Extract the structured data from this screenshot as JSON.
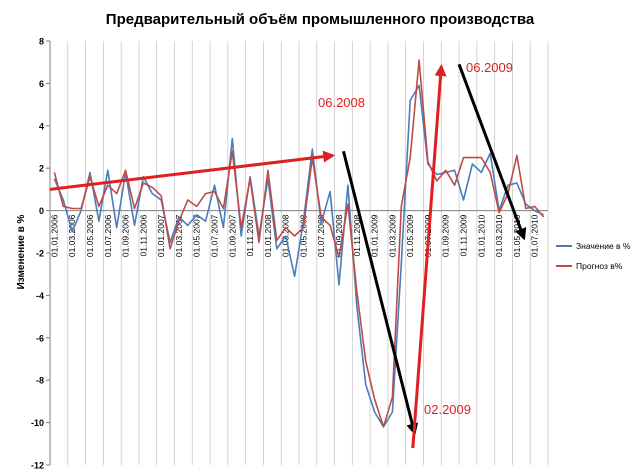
{
  "chart_data": {
    "type": "line",
    "title": "Предварительный объём промышленного производства",
    "xlabel": "",
    "ylabel": "Изменение в %",
    "ylim": [
      -12,
      8
    ],
    "yticks": [
      -12,
      -10,
      -8,
      -6,
      -4,
      -2,
      0,
      2,
      4,
      6,
      8
    ],
    "grid": "vertical",
    "legend_position": "right",
    "x_tick_labels": [
      "01.01.2006",
      "01.03.2006",
      "01.05.2006",
      "01.07.2006",
      "01.09.2006",
      "01.11.2006",
      "01.01.2007",
      "01.03.2007",
      "01.05.2007",
      "01.07.2007",
      "01.09.2007",
      "01.11.2007",
      "01.01.2008",
      "01.03.2008",
      "01.05.2008",
      "01.07.2008",
      "01.09.2008",
      "01.11.2008",
      "01.01.2009",
      "01.03.2009",
      "01.05.2009",
      "01.07.2009",
      "01.09.2009",
      "01.11.2009",
      "01.01.2010",
      "01.03.2010",
      "01.05.2010",
      "01.07.2010"
    ],
    "series": [
      {
        "name": "Значение в %",
        "color": "#4a7ebb",
        "values": [
          1.5,
          0.5,
          -1,
          0,
          1.8,
          -0.5,
          1.9,
          -0.8,
          1.8,
          -0.7,
          1.6,
          0.8,
          0.5,
          -1.5,
          -0.3,
          -0.7,
          -0.2,
          -0.5,
          1.2,
          -0.8,
          3.4,
          -1.2,
          1.6,
          -1.2,
          1.5,
          -1.8,
          -1.2,
          -3.1,
          -0.5,
          2.9,
          -0.6,
          0.9,
          -3.5,
          1.2,
          -4.5,
          -8.2,
          -9.5,
          -10.2,
          -9.5,
          -2.5,
          5.2,
          5.9,
          2.2,
          1.7,
          1.8,
          1.9,
          0.5,
          2.2,
          1.8,
          2.7,
          0,
          1.2,
          1.3,
          0.3,
          0,
          -0.2
        ]
      },
      {
        "name": "Прогноз в%",
        "color": "#be4b48",
        "values": [
          1.8,
          0.2,
          0.1,
          0.1,
          1.6,
          0.2,
          1.2,
          0.8,
          1.9,
          0.1,
          1.3,
          1.1,
          0.7,
          -1.8,
          -0.5,
          0.5,
          0.2,
          0.8,
          0.9,
          0.1,
          2.8,
          -0.8,
          1.5,
          -1.5,
          1.9,
          -1.4,
          -0.8,
          -1.2,
          -0.8,
          2.5,
          -0.3,
          -0.7,
          -2.2,
          0.3,
          -3.8,
          -7.1,
          -8.9,
          -10.2,
          -8.8,
          0.2,
          2.5,
          7.1,
          2.3,
          1.4,
          1.9,
          1.2,
          2.5,
          2.5,
          2.5,
          1.8,
          -0.1,
          0.8,
          2.6,
          0.1,
          0.2,
          -0.3
        ]
      }
    ],
    "annotations": [
      {
        "text": "06.2008",
        "color": "#e02020"
      },
      {
        "text": "02.2009",
        "color": "#e02020"
      },
      {
        "text": "06.2009",
        "color": "#e02020"
      }
    ],
    "trend_arrows": [
      {
        "color": "#e02020",
        "from": [
          -0.5,
          1.0
        ],
        "to": [
          31.3,
          2.6
        ]
      },
      {
        "color": "#000000",
        "from": [
          32.5,
          2.8
        ],
        "to": [
          40.5,
          -10.5
        ]
      },
      {
        "color": "#e02020",
        "from": [
          40.3,
          -11.2
        ],
        "to": [
          43.5,
          6.8
        ]
      },
      {
        "color": "#000000",
        "from": [
          45.5,
          6.9
        ],
        "to": [
          52.8,
          -1.3
        ]
      }
    ]
  }
}
